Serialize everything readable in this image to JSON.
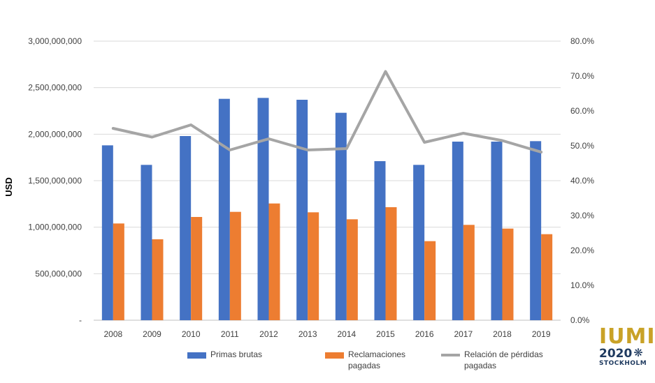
{
  "chart_data": {
    "type": "bar",
    "categories": [
      "2008",
      "2009",
      "2010",
      "2011",
      "2012",
      "2013",
      "2014",
      "2015",
      "2016",
      "2017",
      "2018",
      "2019"
    ],
    "series": [
      {
        "name": "Primas brutas",
        "kind": "bar",
        "axis": "left",
        "color": "#4472C4",
        "values": [
          1880000000,
          1670000000,
          1980000000,
          2380000000,
          2390000000,
          2370000000,
          2230000000,
          1710000000,
          1670000000,
          1920000000,
          1920000000,
          1925000000
        ]
      },
      {
        "name": "Reclamaciones pagadas",
        "kind": "bar",
        "axis": "left",
        "color": "#ED7D31",
        "values": [
          1040000000,
          870000000,
          1110000000,
          1165000000,
          1255000000,
          1160000000,
          1085000000,
          1215000000,
          850000000,
          1025000000,
          985000000,
          925000000
        ]
      },
      {
        "name": "Relación de pérdidas pagadas",
        "kind": "line",
        "axis": "right",
        "color": "#A5A5A5",
        "values": [
          0.55,
          0.525,
          0.56,
          0.488,
          0.52,
          0.488,
          0.492,
          0.713,
          0.51,
          0.536,
          0.515,
          0.482
        ]
      }
    ],
    "ylabel": "USD",
    "ylim": [
      0,
      3000000000
    ],
    "y2lim": [
      0,
      0.8
    ],
    "yticks": [
      0,
      500000000,
      1000000000,
      1500000000,
      2000000000,
      2500000000,
      3000000000
    ],
    "yticklabels": [
      "-",
      "500,000,000",
      "1,000,000,000",
      "1,500,000,000",
      "2,000,000,000",
      "2,500,000,000",
      "3,000,000,000"
    ],
    "y2ticks": [
      0,
      0.1,
      0.2,
      0.3,
      0.4,
      0.5,
      0.6,
      0.7,
      0.8
    ],
    "y2ticklabels": [
      "0.0%",
      "10.0%",
      "20.0%",
      "30.0%",
      "40.0%",
      "50.0%",
      "60.0%",
      "70.0%",
      "80.0%"
    ],
    "grid": true,
    "legend_position": "bottom"
  },
  "legend": {
    "primas": "Primas brutas",
    "reclamaciones": "Reclamaciones pagadas",
    "relacion": "Relación de pérdidas pagadas"
  },
  "logo": {
    "text": "IUMI",
    "year": "2020",
    "city": "STOCKHOLM",
    "color_gold": "#C9A227",
    "color_blue": "#1F3A5F"
  }
}
